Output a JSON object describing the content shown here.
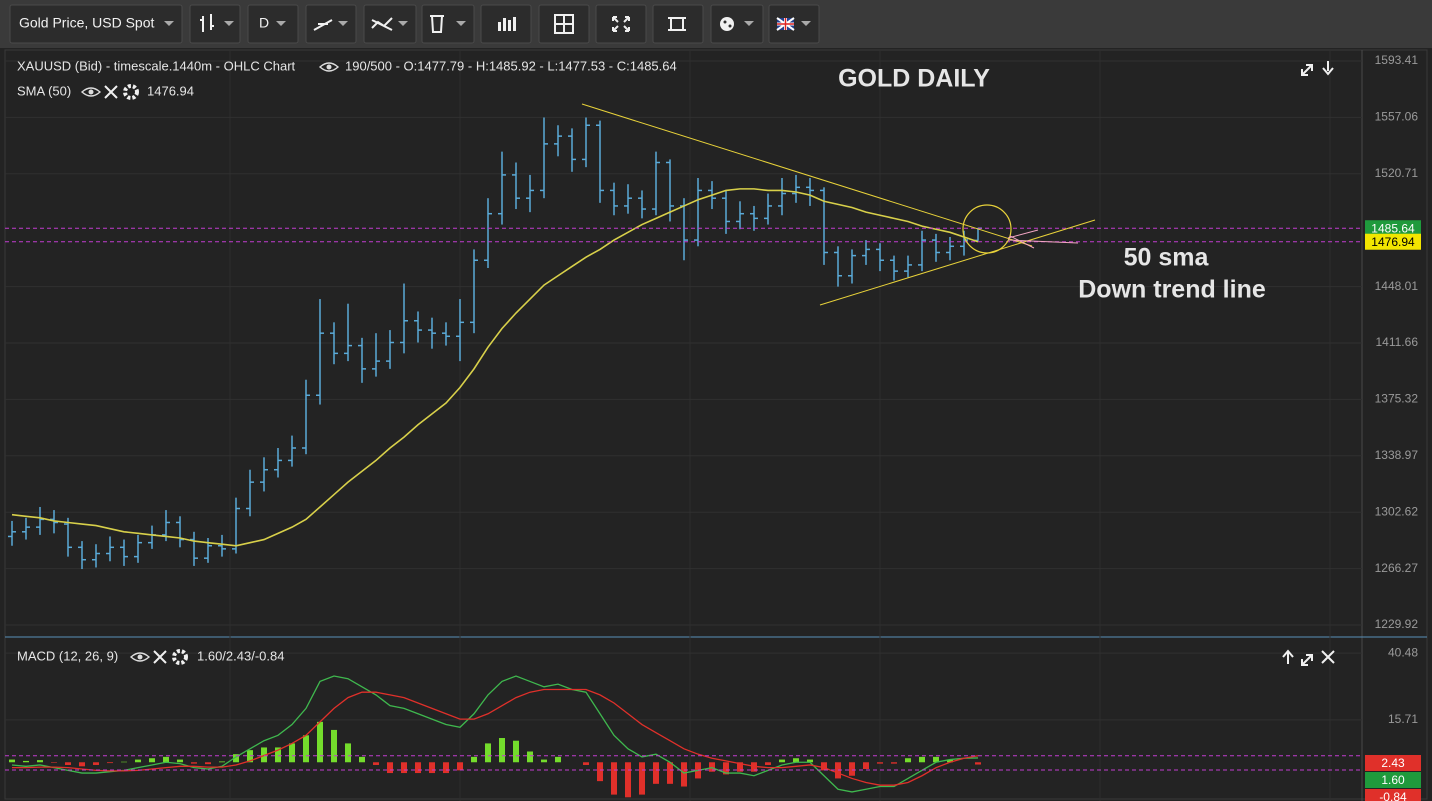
{
  "toolbar": {
    "symbol": "Gold Price, USD Spot",
    "interval": "D"
  },
  "chart_data": [
    {
      "type": "ohlc",
      "title": "XAUUSD (Bid) - timescale.1440m - OHLC Chart",
      "info": "190/500 - O:1477.79 - H:1485.92 - L:1477.53 - C:1485.64",
      "annotations": [
        {
          "text": "GOLD DAILY",
          "color": "#f5b91c"
        },
        {
          "text": "50 sma",
          "color": "#f4a6c4"
        },
        {
          "text": "Down trend line",
          "color": "#9fd3f0"
        }
      ],
      "color": "#5aaad8",
      "last_color": "#1f9a3c",
      "open": [
        1287,
        1290,
        1293,
        1298,
        1295,
        1280,
        1272,
        1276,
        1280,
        1274,
        1283,
        1288,
        1296,
        1285,
        1273,
        1281,
        1279,
        1305,
        1322,
        1330,
        1336,
        1344,
        1378,
        1418,
        1405,
        1410,
        1395,
        1400,
        1412,
        1426,
        1420,
        1418,
        1416,
        1425,
        1465,
        1495,
        1520,
        1505,
        1510,
        1540,
        1545,
        1530,
        1552,
        1510,
        1500,
        1505,
        1498,
        1528,
        1500,
        1478,
        1510,
        1505,
        1490,
        1495,
        1492,
        1500,
        1508,
        1512,
        1510,
        1470,
        1455,
        1468,
        1472,
        1465,
        1458,
        1462,
        1478,
        1470,
        1474,
        1477.79
      ],
      "high": [
        1297,
        1299,
        1306,
        1304,
        1299,
        1284,
        1282,
        1287,
        1285,
        1288,
        1294,
        1304,
        1300,
        1290,
        1286,
        1288,
        1312,
        1330,
        1338,
        1344,
        1352,
        1388,
        1440,
        1425,
        1437,
        1415,
        1418,
        1420,
        1450,
        1432,
        1428,
        1425,
        1440,
        1472,
        1505,
        1535,
        1528,
        1520,
        1557,
        1552,
        1550,
        1557,
        1555,
        1515,
        1514,
        1510,
        1535,
        1530,
        1505,
        1518,
        1516,
        1510,
        1503,
        1500,
        1508,
        1518,
        1520,
        1518,
        1512,
        1474,
        1472,
        1478,
        1476,
        1468,
        1468,
        1484,
        1482,
        1480,
        1484,
        1485.92
      ],
      "low": [
        1281,
        1285,
        1288,
        1289,
        1274,
        1266,
        1267,
        1271,
        1268,
        1270,
        1279,
        1284,
        1280,
        1268,
        1270,
        1274,
        1276,
        1300,
        1316,
        1325,
        1332,
        1340,
        1372,
        1398,
        1400,
        1386,
        1390,
        1395,
        1405,
        1412,
        1408,
        1410,
        1400,
        1418,
        1460,
        1488,
        1498,
        1496,
        1505,
        1532,
        1522,
        1525,
        1502,
        1494,
        1495,
        1492,
        1494,
        1490,
        1465,
        1474,
        1498,
        1482,
        1485,
        1484,
        1488,
        1494,
        1502,
        1500,
        1462,
        1448,
        1450,
        1462,
        1458,
        1452,
        1454,
        1458,
        1464,
        1465,
        1468,
        1477.53
      ],
      "close": [
        1290,
        1293,
        1298,
        1296,
        1280,
        1272,
        1276,
        1280,
        1274,
        1283,
        1288,
        1296,
        1285,
        1273,
        1281,
        1279,
        1305,
        1322,
        1330,
        1336,
        1344,
        1378,
        1418,
        1405,
        1410,
        1395,
        1400,
        1412,
        1426,
        1420,
        1418,
        1416,
        1425,
        1465,
        1495,
        1520,
        1505,
        1510,
        1540,
        1545,
        1530,
        1552,
        1510,
        1500,
        1505,
        1498,
        1528,
        1500,
        1478,
        1510,
        1505,
        1490,
        1495,
        1492,
        1500,
        1508,
        1512,
        1510,
        1470,
        1455,
        1468,
        1472,
        1465,
        1458,
        1462,
        1478,
        1470,
        1474,
        1478,
        1485.64
      ],
      "sma": {
        "name": "SMA (50)",
        "color": "#d8d04a",
        "values": [
          1301,
          1300,
          1299,
          1297,
          1296,
          1295,
          1294,
          1292,
          1290,
          1289,
          1288,
          1287,
          1286,
          1284,
          1283,
          1282,
          1281,
          1283,
          1285,
          1289,
          1293,
          1298,
          1306,
          1314,
          1322,
          1329,
          1336,
          1344,
          1351,
          1359,
          1366,
          1373,
          1383,
          1395,
          1409,
          1421,
          1431,
          1440,
          1449,
          1455,
          1461,
          1467,
          1472,
          1478,
          1483,
          1488,
          1492,
          1496,
          1500,
          1504,
          1507,
          1510,
          1511,
          1511,
          1510,
          1510,
          1509,
          1507,
          1503,
          1501,
          1499,
          1496,
          1494,
          1492,
          1490,
          1487,
          1485,
          1483,
          1480,
          1476.94
        ]
      },
      "ylim": [
        1222.2,
        1600.5
      ],
      "yticks": [
        1593.41,
        1557.06,
        1520.71,
        1448.01,
        1411.66,
        1375.32,
        1338.97,
        1302.62,
        1266.27,
        1229.92
      ],
      "grid": true
    },
    {
      "type": "macd",
      "title": "MACD (12, 26, 9)",
      "info": "1.60/2.43/-0.84",
      "series": [
        {
          "color": "#3fb84e",
          "values": [
            -1,
            -1.5,
            -1,
            -2,
            -3,
            -4,
            -4,
            -3.5,
            -3,
            -2,
            -1,
            0,
            -0.5,
            -2,
            -2.5,
            -1.5,
            2,
            5,
            8,
            10,
            14,
            20,
            30,
            32,
            31,
            28,
            25,
            21,
            20,
            18,
            16,
            14,
            13,
            18,
            25,
            30,
            32,
            30,
            28,
            29,
            27,
            26,
            18,
            10,
            5,
            2,
            3,
            0,
            -4,
            -3,
            -2,
            -4,
            -4,
            -5,
            -3,
            -1,
            0,
            0,
            -5,
            -10,
            -11,
            -10,
            -9,
            -9,
            -6,
            -3,
            0,
            1,
            1.5,
            1.6
          ],
          "value_labels": [
            null,
            null,
            null,
            null,
            null,
            null,
            null,
            null,
            null,
            null,
            null,
            null,
            null,
            null,
            null,
            null,
            null,
            null,
            null,
            null,
            null,
            null,
            null,
            null,
            null,
            null,
            null,
            null,
            null,
            null,
            null,
            null,
            null,
            null,
            null,
            null,
            null,
            null,
            null,
            null,
            null,
            null,
            null,
            null,
            null,
            null,
            null,
            null,
            null,
            null,
            null,
            null,
            null,
            null,
            null,
            null,
            null,
            null,
            null,
            null,
            null,
            null,
            null,
            null,
            null,
            null,
            null,
            null,
            null,
            "1.60"
          ]
        },
        {
          "color": "#e0302a",
          "values": [
            -2,
            -2,
            -1.8,
            -1.8,
            -2,
            -2.5,
            -3,
            -3.2,
            -3.2,
            -3,
            -2.5,
            -2,
            -1.5,
            -1.5,
            -1.8,
            -1.8,
            -1,
            0.5,
            2.5,
            4.5,
            7,
            10,
            15,
            20,
            24,
            26,
            26,
            25,
            24,
            22,
            20,
            18,
            16,
            16,
            18,
            21,
            24,
            26,
            27,
            27,
            27,
            27,
            25,
            22,
            18,
            14,
            11,
            8,
            5,
            3,
            1.5,
            0.5,
            -0.5,
            -1.5,
            -2,
            -2,
            -1.5,
            -1,
            -2,
            -4,
            -6,
            -7.5,
            -8.5,
            -8.5,
            -7.5,
            -5,
            -2,
            0,
            1.5,
            2.43
          ]
        }
      ],
      "histogram": {
        "up_color": "#74dc2c",
        "down_color": "#e0302a",
        "values": [
          1,
          0.5,
          0.8,
          -0.2,
          -1,
          -1.5,
          -1,
          -0.3,
          0.2,
          1,
          1.5,
          2,
          1,
          -0.5,
          -0.7,
          0.3,
          3,
          4.5,
          5.5,
          5.5,
          7,
          10,
          15,
          12,
          7,
          2,
          -1,
          -4,
          -4,
          -4,
          -4,
          -4,
          -3,
          2,
          7,
          9,
          8,
          4,
          1,
          2,
          0,
          -1,
          -7,
          -12,
          -13,
          -12,
          -8,
          -8,
          -9,
          -6,
          -3.5,
          -4.5,
          -3.5,
          -3.5,
          -1,
          1,
          1.5,
          1,
          -3,
          -6,
          -5,
          -2.5,
          -0.5,
          -0.5,
          1.5,
          2,
          2,
          1,
          0,
          -0.84
        ]
      },
      "ylim": [
        -14,
        45
      ],
      "yticks": [
        40.48,
        15.71
      ],
      "grid": true
    }
  ]
}
